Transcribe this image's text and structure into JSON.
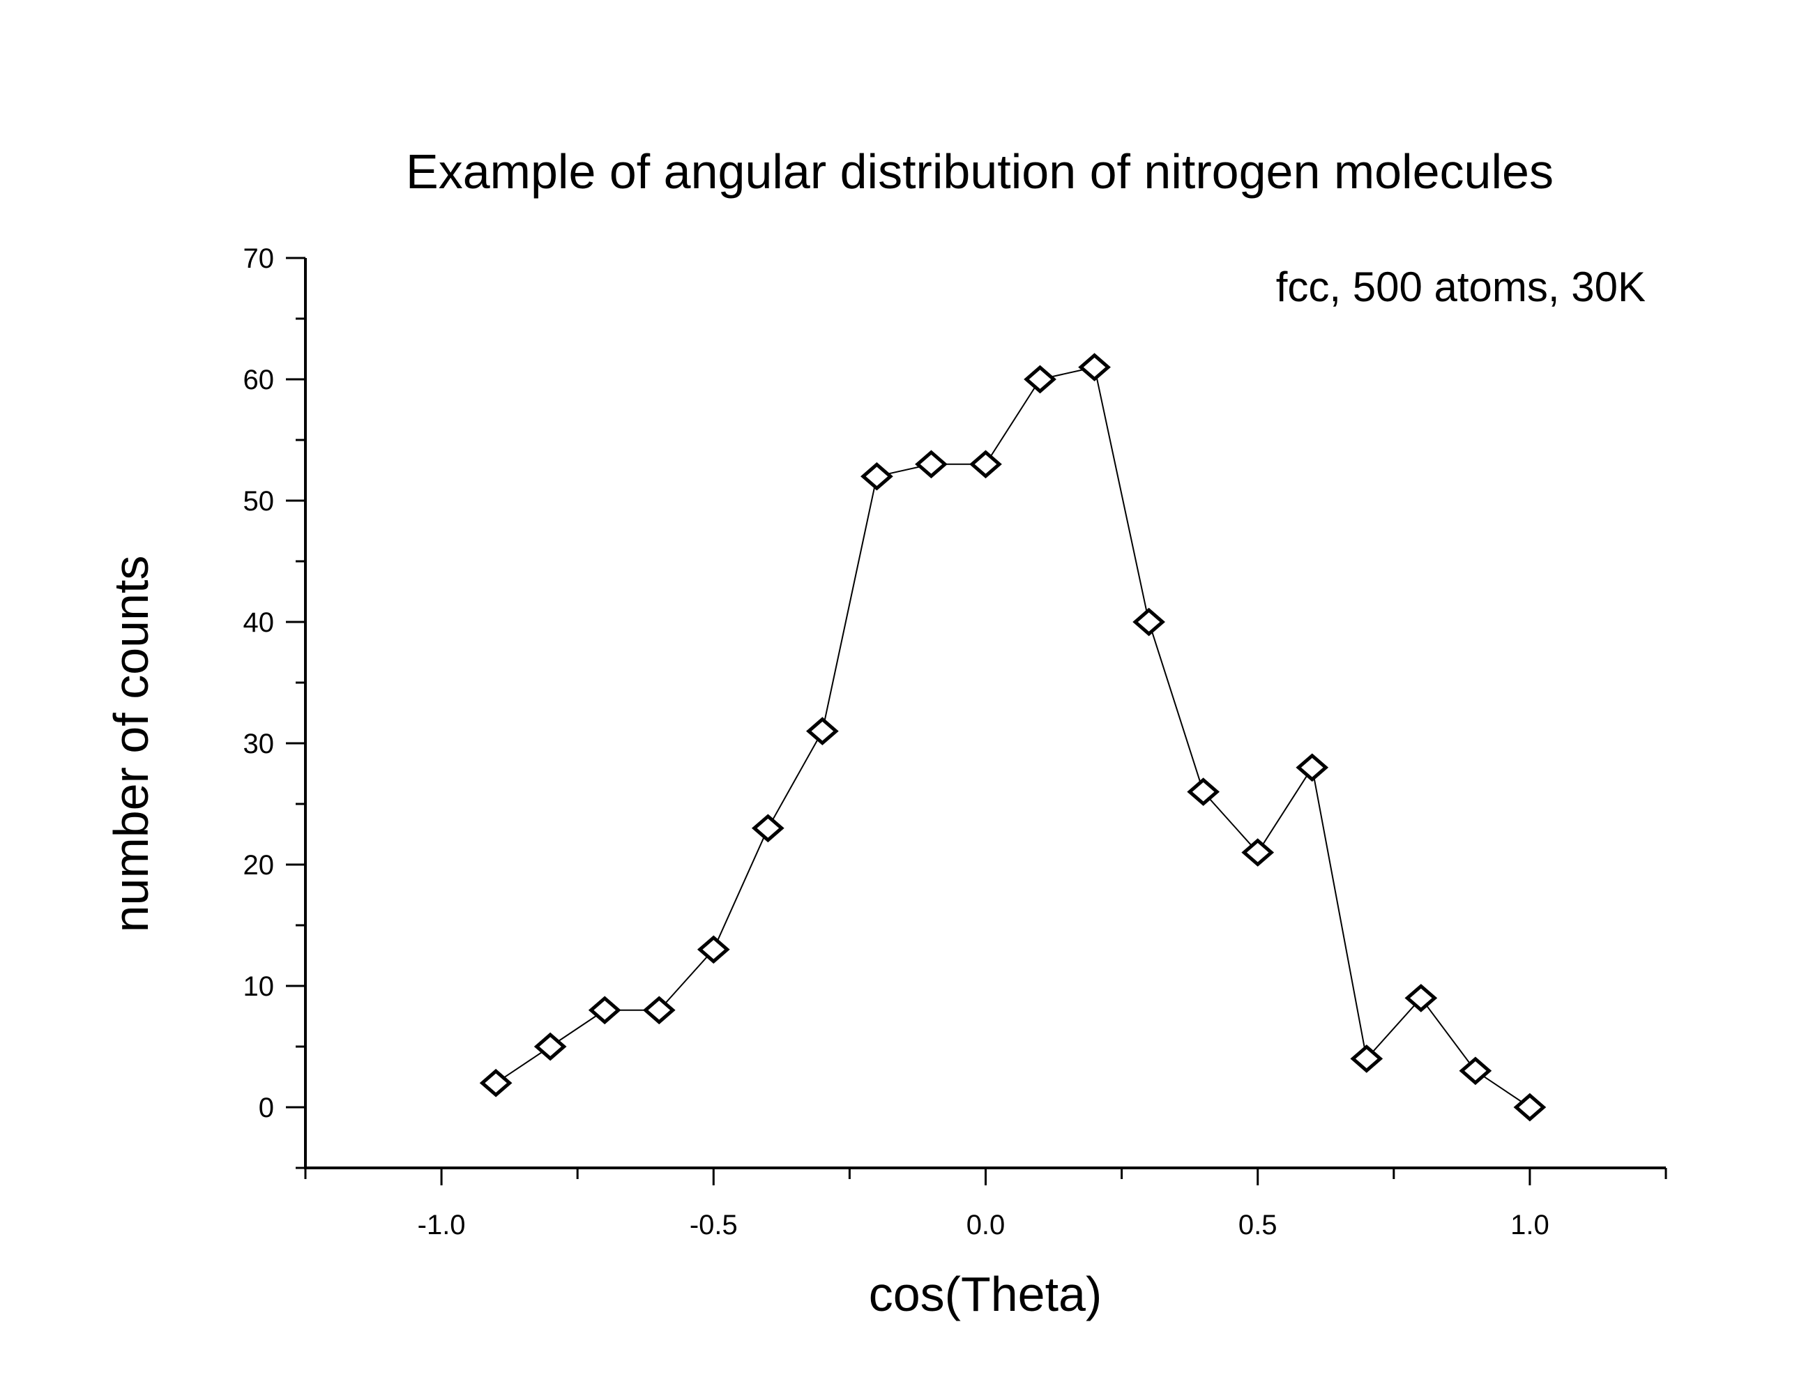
{
  "chart_data": {
    "type": "line",
    "title": "Example of angular distribution of nitrogen molecules",
    "annotation": "fcc, 500 atoms, 30K",
    "xlabel": "cos(Theta)",
    "ylabel": "number of counts",
    "xlim": [
      -1.25,
      1.25
    ],
    "ylim": [
      -5,
      70
    ],
    "xticks": [
      -1.0,
      -0.5,
      0.0,
      0.5,
      1.0
    ],
    "xtick_labels": [
      "-1.0",
      "-0.5",
      "0.0",
      "0.5",
      "1.0"
    ],
    "yticks": [
      0,
      10,
      20,
      30,
      40,
      50,
      60,
      70
    ],
    "ytick_labels": [
      "0",
      "10",
      "20",
      "30",
      "40",
      "50",
      "60",
      "70"
    ],
    "grid": false,
    "marker": "open-diamond",
    "line_color": "#000000",
    "x": [
      -0.9,
      -0.8,
      -0.7,
      -0.6,
      -0.5,
      -0.4,
      -0.3,
      -0.2,
      -0.1,
      0.0,
      0.1,
      0.2,
      0.3,
      0.4,
      0.5,
      0.6,
      0.7,
      0.8,
      0.9,
      1.0
    ],
    "y": [
      2,
      5,
      8,
      8,
      13,
      23,
      31,
      52,
      53,
      53,
      60,
      61,
      40,
      26,
      21,
      28,
      4,
      9,
      3,
      0
    ]
  }
}
